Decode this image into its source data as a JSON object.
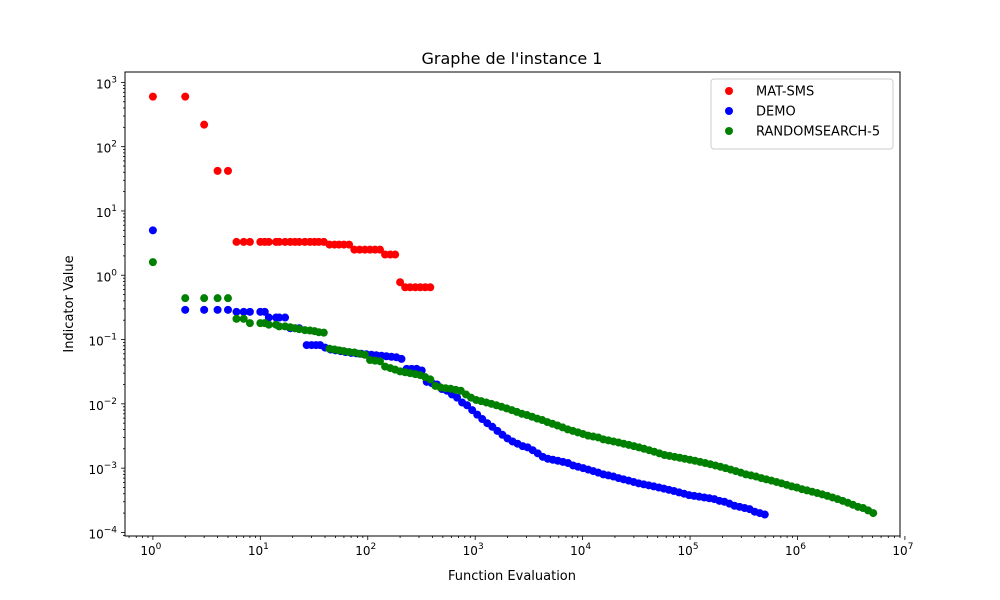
{
  "chart_data": {
    "type": "scatter",
    "title": "Graphe de l'instance 1",
    "xlabel": "Function Evaluation",
    "ylabel": "Indicator Value",
    "x_scale": "log",
    "y_scale": "log",
    "xlim": [
      0.55,
      9000000
    ],
    "ylim": [
      8.8e-05,
      1450
    ],
    "x_ticks": [
      {
        "value": 1,
        "base": "10",
        "exp": "0"
      },
      {
        "value": 10,
        "base": "10",
        "exp": "1"
      },
      {
        "value": 100,
        "base": "10",
        "exp": "2"
      },
      {
        "value": 1000,
        "base": "10",
        "exp": "3"
      },
      {
        "value": 10000,
        "base": "10",
        "exp": "4"
      },
      {
        "value": 100000,
        "base": "10",
        "exp": "5"
      },
      {
        "value": 1000000,
        "base": "10",
        "exp": "6"
      },
      {
        "value": 10000000,
        "base": "10",
        "exp": "7"
      }
    ],
    "y_ticks": [
      {
        "value": 0.0001,
        "base": "10",
        "exp": "−4"
      },
      {
        "value": 0.001,
        "base": "10",
        "exp": "−3"
      },
      {
        "value": 0.01,
        "base": "10",
        "exp": "−2"
      },
      {
        "value": 0.1,
        "base": "10",
        "exp": "−1"
      },
      {
        "value": 1,
        "base": "10",
        "exp": "0"
      },
      {
        "value": 10,
        "base": "10",
        "exp": "1"
      },
      {
        "value": 100,
        "base": "10",
        "exp": "2"
      },
      {
        "value": 1000,
        "base": "10",
        "exp": "3"
      }
    ],
    "legend_position": "top-right",
    "grid": false,
    "series": [
      {
        "name": "MAT-SMS",
        "color": "#ff0000",
        "points": [
          [
            1,
            600
          ],
          [
            2,
            600
          ],
          [
            3,
            220
          ],
          [
            4,
            42
          ],
          [
            5,
            42
          ],
          [
            6,
            3.3
          ],
          [
            7,
            3.3
          ],
          [
            8,
            3.3
          ],
          [
            10,
            3.3
          ],
          [
            11,
            3.3
          ],
          [
            12,
            3.3
          ],
          [
            14,
            3.3
          ],
          [
            15,
            3.3
          ],
          [
            17,
            3.3
          ],
          [
            19,
            3.3
          ],
          [
            21,
            3.3
          ],
          [
            23,
            3.3
          ],
          [
            26,
            3.3
          ],
          [
            29,
            3.3
          ],
          [
            32,
            3.3
          ],
          [
            35,
            3.3
          ],
          [
            39,
            3.3
          ],
          [
            44,
            3.0
          ],
          [
            49,
            3.0
          ],
          [
            54,
            3.0
          ],
          [
            60,
            3.0
          ],
          [
            67,
            3.0
          ],
          [
            75,
            2.5
          ],
          [
            84,
            2.5
          ],
          [
            94,
            2.5
          ],
          [
            105,
            2.5
          ],
          [
            117,
            2.5
          ],
          [
            130,
            2.5
          ],
          [
            145,
            2.1
          ],
          [
            162,
            2.1
          ],
          [
            180,
            2.1
          ],
          [
            200,
            0.78
          ],
          [
            223,
            0.65
          ],
          [
            248,
            0.65
          ],
          [
            277,
            0.65
          ],
          [
            308,
            0.65
          ],
          [
            343,
            0.65
          ],
          [
            382,
            0.65
          ]
        ]
      },
      {
        "name": "DEMO",
        "color": "#0000ff",
        "points": [
          [
            1,
            5.0
          ],
          [
            2,
            0.29
          ],
          [
            3,
            0.29
          ],
          [
            4,
            0.29
          ],
          [
            5,
            0.29
          ],
          [
            6,
            0.27
          ],
          [
            7,
            0.27
          ],
          [
            8,
            0.27
          ],
          [
            10,
            0.27
          ],
          [
            11,
            0.27
          ],
          [
            12,
            0.22
          ],
          [
            14,
            0.22
          ],
          [
            15,
            0.22
          ],
          [
            17,
            0.22
          ],
          [
            19,
            0.15
          ],
          [
            21,
            0.15
          ],
          [
            23,
            0.15
          ],
          [
            27,
            0.082
          ],
          [
            30,
            0.082
          ],
          [
            33,
            0.082
          ],
          [
            36,
            0.082
          ],
          [
            40,
            0.075
          ],
          [
            45,
            0.07
          ],
          [
            50,
            0.068
          ],
          [
            56,
            0.066
          ],
          [
            62,
            0.064
          ],
          [
            70,
            0.062
          ],
          [
            78,
            0.061
          ],
          [
            87,
            0.06
          ],
          [
            97,
            0.059
          ],
          [
            108,
            0.058
          ],
          [
            120,
            0.057
          ],
          [
            134,
            0.056
          ],
          [
            149,
            0.055
          ],
          [
            166,
            0.054
          ],
          [
            185,
            0.053
          ],
          [
            206,
            0.05
          ],
          [
            230,
            0.035
          ],
          [
            256,
            0.035
          ],
          [
            285,
            0.035
          ],
          [
            318,
            0.033
          ],
          [
            354,
            0.022
          ],
          [
            395,
            0.021
          ],
          [
            440,
            0.02
          ],
          [
            490,
            0.017
          ],
          [
            546,
            0.016
          ],
          [
            608,
            0.014
          ],
          [
            678,
            0.0125
          ],
          [
            755,
            0.0105
          ],
          [
            841,
            0.0095
          ],
          [
            937,
            0.008
          ],
          [
            1044,
            0.0068
          ],
          [
            1163,
            0.0058
          ],
          [
            1296,
            0.005
          ],
          [
            1444,
            0.0044
          ],
          [
            1609,
            0.0038
          ],
          [
            1793,
            0.0033
          ],
          [
            1998,
            0.0029
          ],
          [
            2226,
            0.0026
          ],
          [
            2480,
            0.0024
          ],
          [
            2763,
            0.0022
          ],
          [
            3079,
            0.0021
          ],
          [
            3431,
            0.0019
          ],
          [
            3822,
            0.0017
          ],
          [
            4259,
            0.0015
          ],
          [
            4745,
            0.0014
          ],
          [
            5287,
            0.00135
          ],
          [
            5891,
            0.0013
          ],
          [
            6563,
            0.00125
          ],
          [
            7313,
            0.0012
          ],
          [
            8148,
            0.0011
          ],
          [
            9078,
            0.00105
          ],
          [
            10115,
            0.001
          ],
          [
            11270,
            0.00095
          ],
          [
            12557,
            0.0009
          ],
          [
            13991,
            0.00085
          ],
          [
            15589,
            0.0008
          ],
          [
            17369,
            0.00077
          ],
          [
            19353,
            0.00074
          ],
          [
            21563,
            0.0007
          ],
          [
            24025,
            0.00067
          ],
          [
            26769,
            0.00064
          ],
          [
            29826,
            0.00061
          ],
          [
            33232,
            0.00058
          ],
          [
            37027,
            0.00056
          ],
          [
            41255,
            0.00054
          ],
          [
            45966,
            0.00052
          ],
          [
            51215,
            0.0005
          ],
          [
            57064,
            0.00048
          ],
          [
            63580,
            0.00046
          ],
          [
            70841,
            0.00044
          ],
          [
            78931,
            0.00042
          ],
          [
            87944,
            0.0004
          ],
          [
            97987,
            0.00038
          ],
          [
            109177,
            0.00037
          ],
          [
            121644,
            0.00036
          ],
          [
            135535,
            0.00035
          ],
          [
            151013,
            0.00034
          ],
          [
            168258,
            0.00033
          ],
          [
            187472,
            0.00031
          ],
          [
            208881,
            0.0003
          ],
          [
            232734,
            0.00028
          ],
          [
            259311,
            0.00026
          ],
          [
            288923,
            0.00025
          ],
          [
            321917,
            0.00024
          ],
          [
            358679,
            0.00023
          ],
          [
            399638,
            0.00021
          ],
          [
            445275,
            0.0002
          ],
          [
            496123,
            0.00019
          ]
        ]
      },
      {
        "name": "RANDOMSEARCH-5",
        "color": "#008000",
        "points": [
          [
            1,
            1.6
          ],
          [
            2,
            0.44
          ],
          [
            3,
            0.44
          ],
          [
            4,
            0.44
          ],
          [
            5,
            0.44
          ],
          [
            6,
            0.21
          ],
          [
            7,
            0.21
          ],
          [
            8,
            0.18
          ],
          [
            10,
            0.18
          ],
          [
            11,
            0.18
          ],
          [
            12,
            0.17
          ],
          [
            14,
            0.17
          ],
          [
            15,
            0.16
          ],
          [
            17,
            0.16
          ],
          [
            19,
            0.155
          ],
          [
            21,
            0.15
          ],
          [
            23,
            0.145
          ],
          [
            26,
            0.14
          ],
          [
            29,
            0.138
          ],
          [
            32,
            0.135
          ],
          [
            35,
            0.13
          ],
          [
            39,
            0.128
          ],
          [
            44,
            0.072
          ],
          [
            49,
            0.07
          ],
          [
            54,
            0.068
          ],
          [
            60,
            0.066
          ],
          [
            67,
            0.064
          ],
          [
            75,
            0.063
          ],
          [
            84,
            0.06
          ],
          [
            94,
            0.058
          ],
          [
            105,
            0.048
          ],
          [
            117,
            0.047
          ],
          [
            130,
            0.046
          ],
          [
            145,
            0.038
          ],
          [
            162,
            0.036
          ],
          [
            180,
            0.034
          ],
          [
            200,
            0.032
          ],
          [
            223,
            0.031
          ],
          [
            248,
            0.03
          ],
          [
            277,
            0.029
          ],
          [
            308,
            0.028
          ],
          [
            343,
            0.026
          ],
          [
            382,
            0.024
          ],
          [
            426,
            0.019
          ],
          [
            475,
            0.018
          ],
          [
            530,
            0.0175
          ],
          [
            591,
            0.0172
          ],
          [
            659,
            0.0165
          ],
          [
            735,
            0.016
          ],
          [
            820,
            0.014
          ],
          [
            914,
            0.0125
          ],
          [
            1020,
            0.0115
          ],
          [
            1137,
            0.011
          ],
          [
            1268,
            0.0105
          ],
          [
            1414,
            0.01
          ],
          [
            1577,
            0.0095
          ],
          [
            1759,
            0.009
          ],
          [
            1962,
            0.0085
          ],
          [
            2188,
            0.008
          ],
          [
            2440,
            0.0075
          ],
          [
            2721,
            0.007
          ],
          [
            3035,
            0.0067
          ],
          [
            3384,
            0.0063
          ],
          [
            3774,
            0.0059
          ],
          [
            4209,
            0.0056
          ],
          [
            4695,
            0.0052
          ],
          [
            5236,
            0.0049
          ],
          [
            5840,
            0.0046
          ],
          [
            6513,
            0.0043
          ],
          [
            7264,
            0.004
          ],
          [
            8101,
            0.0038
          ],
          [
            9035,
            0.0036
          ],
          [
            10077,
            0.0034
          ],
          [
            11239,
            0.0032
          ],
          [
            12535,
            0.0031
          ],
          [
            13980,
            0.003
          ],
          [
            15592,
            0.0028
          ],
          [
            17390,
            0.0027
          ],
          [
            19395,
            0.0026
          ],
          [
            21631,
            0.0025
          ],
          [
            24125,
            0.0024
          ],
          [
            26907,
            0.0023
          ],
          [
            30010,
            0.0022
          ],
          [
            33470,
            0.0021
          ],
          [
            37329,
            0.002
          ],
          [
            41633,
            0.0019
          ],
          [
            46434,
            0.0018
          ],
          [
            51788,
            0.0017
          ],
          [
            57759,
            0.0016
          ],
          [
            64419,
            0.00155
          ],
          [
            71847,
            0.0015
          ],
          [
            80132,
            0.00145
          ],
          [
            89371,
            0.0014
          ],
          [
            99676,
            0.00135
          ],
          [
            111170,
            0.0013
          ],
          [
            123988,
            0.00125
          ],
          [
            138285,
            0.0012
          ],
          [
            154230,
            0.00115
          ],
          [
            172014,
            0.0011
          ],
          [
            191848,
            0.00105
          ],
          [
            213970,
            0.001
          ],
          [
            238642,
            0.00095
          ],
          [
            266159,
            0.0009
          ],
          [
            296849,
            0.00085
          ],
          [
            331078,
            0.0008
          ],
          [
            369254,
            0.00077
          ],
          [
            411831,
            0.00074
          ],
          [
            459318,
            0.0007
          ],
          [
            512280,
            0.00067
          ],
          [
            571350,
            0.00064
          ],
          [
            637231,
            0.00061
          ],
          [
            710708,
            0.00058
          ],
          [
            792658,
            0.00055
          ],
          [
            884058,
            0.00052
          ],
          [
            986000,
            0.0005
          ],
          [
            1099697,
            0.00047
          ],
          [
            1226504,
            0.00045
          ],
          [
            1367930,
            0.00043
          ],
          [
            1525665,
            0.00041
          ],
          [
            1701588,
            0.00039
          ],
          [
            1897796,
            0.00037
          ],
          [
            2116630,
            0.00035
          ],
          [
            2360697,
            0.00033
          ],
          [
            2632907,
            0.00031
          ],
          [
            2936505,
            0.00029
          ],
          [
            3275110,
            0.00027
          ],
          [
            3652756,
            0.00025
          ],
          [
            4073948,
            0.00024
          ],
          [
            4543708,
            0.00022
          ],
          [
            5067637,
            0.0002
          ]
        ]
      }
    ]
  }
}
